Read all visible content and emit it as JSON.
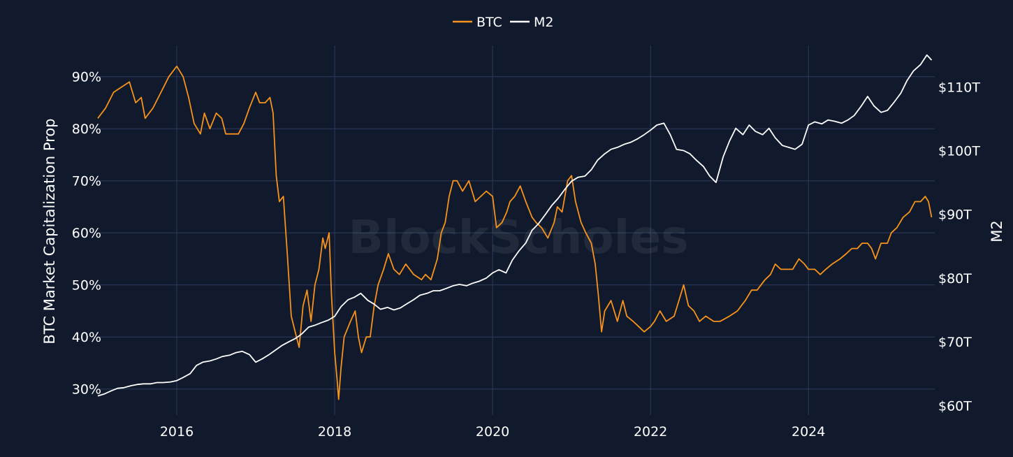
{
  "chart_data": {
    "type": "line",
    "legend": {
      "placement": "top-center"
    },
    "watermark": "BlockScholes",
    "grid": true,
    "x_axis": {
      "ticks": [
        2016,
        2018,
        2020,
        2022,
        2024
      ],
      "tick_labels": [
        "2016",
        "2018",
        "2020",
        "2022",
        "2024"
      ],
      "range": [
        2015.0,
        2025.6
      ]
    },
    "y_left": {
      "label": "BTC Market Capitalization Prop",
      "ticks": [
        30,
        40,
        50,
        60,
        70,
        80,
        90
      ],
      "tick_labels": [
        "30%",
        "40%",
        "50%",
        "60%",
        "70%",
        "80%",
        "90%"
      ],
      "range": [
        25,
        96
      ]
    },
    "y_right": {
      "label": "M2",
      "ticks": [
        60,
        70,
        80,
        90,
        100,
        110
      ],
      "tick_labels": [
        "$60T",
        "$70T",
        "$80T",
        "$90T",
        "$100T",
        "$110T"
      ],
      "range": [
        58.5,
        116.5
      ]
    },
    "series": [
      {
        "name": "BTC",
        "axis": "left",
        "color": "#f7931a",
        "points": [
          [
            2015.0,
            82
          ],
          [
            2015.1,
            84
          ],
          [
            2015.2,
            87
          ],
          [
            2015.3,
            88
          ],
          [
            2015.4,
            89
          ],
          [
            2015.48,
            85
          ],
          [
            2015.55,
            86
          ],
          [
            2015.6,
            82
          ],
          [
            2015.7,
            84
          ],
          [
            2015.8,
            87
          ],
          [
            2015.9,
            90
          ],
          [
            2016.0,
            92
          ],
          [
            2016.08,
            90
          ],
          [
            2016.15,
            86
          ],
          [
            2016.22,
            81
          ],
          [
            2016.3,
            79
          ],
          [
            2016.35,
            83
          ],
          [
            2016.42,
            80
          ],
          [
            2016.5,
            83
          ],
          [
            2016.57,
            82
          ],
          [
            2016.62,
            79
          ],
          [
            2016.7,
            79
          ],
          [
            2016.78,
            79
          ],
          [
            2016.85,
            81
          ],
          [
            2016.92,
            84
          ],
          [
            2017.0,
            87
          ],
          [
            2017.05,
            85
          ],
          [
            2017.12,
            85
          ],
          [
            2017.18,
            86
          ],
          [
            2017.22,
            83
          ],
          [
            2017.26,
            71
          ],
          [
            2017.3,
            66
          ],
          [
            2017.35,
            67
          ],
          [
            2017.4,
            56
          ],
          [
            2017.45,
            44
          ],
          [
            2017.5,
            41
          ],
          [
            2017.55,
            38
          ],
          [
            2017.6,
            46
          ],
          [
            2017.65,
            49
          ],
          [
            2017.7,
            43
          ],
          [
            2017.75,
            50
          ],
          [
            2017.8,
            53
          ],
          [
            2017.85,
            59
          ],
          [
            2017.88,
            57
          ],
          [
            2017.93,
            60
          ],
          [
            2017.96,
            48
          ],
          [
            2018.0,
            37
          ],
          [
            2018.03,
            32
          ],
          [
            2018.05,
            28
          ],
          [
            2018.08,
            34
          ],
          [
            2018.12,
            40
          ],
          [
            2018.2,
            43
          ],
          [
            2018.26,
            45
          ],
          [
            2018.3,
            40
          ],
          [
            2018.34,
            37
          ],
          [
            2018.4,
            40
          ],
          [
            2018.45,
            40
          ],
          [
            2018.5,
            46
          ],
          [
            2018.55,
            50
          ],
          [
            2018.62,
            53
          ],
          [
            2018.68,
            56
          ],
          [
            2018.75,
            53
          ],
          [
            2018.82,
            52
          ],
          [
            2018.9,
            54
          ],
          [
            2019.0,
            52
          ],
          [
            2019.1,
            51
          ],
          [
            2019.15,
            52
          ],
          [
            2019.22,
            51
          ],
          [
            2019.3,
            55
          ],
          [
            2019.35,
            60
          ],
          [
            2019.4,
            62
          ],
          [
            2019.45,
            67
          ],
          [
            2019.5,
            70
          ],
          [
            2019.55,
            70
          ],
          [
            2019.62,
            68
          ],
          [
            2019.7,
            70
          ],
          [
            2019.78,
            66
          ],
          [
            2019.85,
            67
          ],
          [
            2019.92,
            68
          ],
          [
            2020.0,
            67
          ],
          [
            2020.05,
            61
          ],
          [
            2020.12,
            62
          ],
          [
            2020.18,
            64
          ],
          [
            2020.22,
            66
          ],
          [
            2020.28,
            67
          ],
          [
            2020.35,
            69
          ],
          [
            2020.42,
            66
          ],
          [
            2020.5,
            63
          ],
          [
            2020.55,
            62
          ],
          [
            2020.62,
            61
          ],
          [
            2020.7,
            59
          ],
          [
            2020.78,
            62
          ],
          [
            2020.82,
            65
          ],
          [
            2020.88,
            64
          ],
          [
            2020.95,
            70
          ],
          [
            2021.0,
            71
          ],
          [
            2021.05,
            66
          ],
          [
            2021.12,
            62
          ],
          [
            2021.18,
            60
          ],
          [
            2021.25,
            58
          ],
          [
            2021.3,
            54
          ],
          [
            2021.34,
            48
          ],
          [
            2021.38,
            41
          ],
          [
            2021.42,
            45
          ],
          [
            2021.5,
            47
          ],
          [
            2021.58,
            43
          ],
          [
            2021.65,
            47
          ],
          [
            2021.7,
            44
          ],
          [
            2021.78,
            43
          ],
          [
            2021.85,
            42
          ],
          [
            2021.92,
            41
          ],
          [
            2022.0,
            42
          ],
          [
            2022.05,
            43
          ],
          [
            2022.12,
            45
          ],
          [
            2022.2,
            43
          ],
          [
            2022.3,
            44
          ],
          [
            2022.38,
            48
          ],
          [
            2022.42,
            50
          ],
          [
            2022.48,
            46
          ],
          [
            2022.55,
            45
          ],
          [
            2022.62,
            43
          ],
          [
            2022.7,
            44
          ],
          [
            2022.8,
            43
          ],
          [
            2022.88,
            43
          ],
          [
            2023.0,
            44
          ],
          [
            2023.1,
            45
          ],
          [
            2023.2,
            47
          ],
          [
            2023.28,
            49
          ],
          [
            2023.35,
            49
          ],
          [
            2023.45,
            51
          ],
          [
            2023.52,
            52
          ],
          [
            2023.58,
            54
          ],
          [
            2023.65,
            53
          ],
          [
            2023.72,
            53
          ],
          [
            2023.8,
            53
          ],
          [
            2023.88,
            55
          ],
          [
            2023.95,
            54
          ],
          [
            2024.0,
            53
          ],
          [
            2024.08,
            53
          ],
          [
            2024.15,
            52
          ],
          [
            2024.22,
            53
          ],
          [
            2024.3,
            54
          ],
          [
            2024.4,
            55
          ],
          [
            2024.48,
            56
          ],
          [
            2024.55,
            57
          ],
          [
            2024.62,
            57
          ],
          [
            2024.68,
            58
          ],
          [
            2024.75,
            58
          ],
          [
            2024.8,
            57
          ],
          [
            2024.85,
            55
          ],
          [
            2024.92,
            58
          ],
          [
            2025.0,
            58
          ],
          [
            2025.05,
            60
          ],
          [
            2025.12,
            61
          ],
          [
            2025.2,
            63
          ],
          [
            2025.28,
            64
          ],
          [
            2025.35,
            66
          ],
          [
            2025.42,
            66
          ],
          [
            2025.48,
            67
          ],
          [
            2025.52,
            66
          ],
          [
            2025.56,
            63
          ]
        ]
      },
      {
        "name": "M2",
        "axis": "right",
        "color": "#ffffff",
        "points": [
          [
            2015.0,
            61.5
          ],
          [
            2015.08,
            61.8
          ],
          [
            2015.17,
            62.3
          ],
          [
            2015.25,
            62.7
          ],
          [
            2015.33,
            62.8
          ],
          [
            2015.42,
            63.1
          ],
          [
            2015.5,
            63.3
          ],
          [
            2015.58,
            63.4
          ],
          [
            2015.67,
            63.4
          ],
          [
            2015.75,
            63.6
          ],
          [
            2015.83,
            63.6
          ],
          [
            2015.92,
            63.7
          ],
          [
            2016.0,
            63.9
          ],
          [
            2016.08,
            64.4
          ],
          [
            2016.17,
            65.0
          ],
          [
            2016.25,
            66.3
          ],
          [
            2016.33,
            66.8
          ],
          [
            2016.42,
            67.0
          ],
          [
            2016.5,
            67.3
          ],
          [
            2016.58,
            67.7
          ],
          [
            2016.67,
            67.9
          ],
          [
            2016.75,
            68.3
          ],
          [
            2016.83,
            68.5
          ],
          [
            2016.92,
            68.0
          ],
          [
            2017.0,
            66.8
          ],
          [
            2017.08,
            67.3
          ],
          [
            2017.17,
            68.0
          ],
          [
            2017.25,
            68.7
          ],
          [
            2017.33,
            69.4
          ],
          [
            2017.42,
            70.0
          ],
          [
            2017.5,
            70.5
          ],
          [
            2017.58,
            71.2
          ],
          [
            2017.67,
            72.3
          ],
          [
            2017.75,
            72.6
          ],
          [
            2017.83,
            73.0
          ],
          [
            2017.92,
            73.4
          ],
          [
            2018.0,
            74.0
          ],
          [
            2018.08,
            75.5
          ],
          [
            2018.17,
            76.6
          ],
          [
            2018.25,
            77.0
          ],
          [
            2018.33,
            77.6
          ],
          [
            2018.42,
            76.5
          ],
          [
            2018.5,
            75.9
          ],
          [
            2018.58,
            75.1
          ],
          [
            2018.67,
            75.4
          ],
          [
            2018.75,
            75.0
          ],
          [
            2018.83,
            75.3
          ],
          [
            2018.92,
            76.0
          ],
          [
            2019.0,
            76.6
          ],
          [
            2019.08,
            77.3
          ],
          [
            2019.17,
            77.6
          ],
          [
            2019.25,
            78.0
          ],
          [
            2019.33,
            78.0
          ],
          [
            2019.42,
            78.4
          ],
          [
            2019.5,
            78.8
          ],
          [
            2019.58,
            79.0
          ],
          [
            2019.67,
            78.8
          ],
          [
            2019.75,
            79.2
          ],
          [
            2019.83,
            79.5
          ],
          [
            2019.92,
            80.0
          ],
          [
            2020.0,
            80.8
          ],
          [
            2020.08,
            81.3
          ],
          [
            2020.17,
            80.8
          ],
          [
            2020.25,
            82.8
          ],
          [
            2020.33,
            84.2
          ],
          [
            2020.42,
            85.5
          ],
          [
            2020.5,
            87.5
          ],
          [
            2020.58,
            88.5
          ],
          [
            2020.67,
            90.0
          ],
          [
            2020.75,
            91.4
          ],
          [
            2020.83,
            92.5
          ],
          [
            2020.92,
            94.0
          ],
          [
            2021.0,
            95.2
          ],
          [
            2021.08,
            95.8
          ],
          [
            2021.17,
            96.0
          ],
          [
            2021.25,
            97.0
          ],
          [
            2021.33,
            98.5
          ],
          [
            2021.42,
            99.5
          ],
          [
            2021.5,
            100.2
          ],
          [
            2021.58,
            100.5
          ],
          [
            2021.67,
            101.0
          ],
          [
            2021.75,
            101.3
          ],
          [
            2021.83,
            101.8
          ],
          [
            2021.92,
            102.5
          ],
          [
            2022.0,
            103.2
          ],
          [
            2022.08,
            104.0
          ],
          [
            2022.17,
            104.3
          ],
          [
            2022.25,
            102.5
          ],
          [
            2022.33,
            100.2
          ],
          [
            2022.42,
            100.0
          ],
          [
            2022.5,
            99.5
          ],
          [
            2022.58,
            98.5
          ],
          [
            2022.67,
            97.5
          ],
          [
            2022.75,
            96.0
          ],
          [
            2022.83,
            95.0
          ],
          [
            2022.92,
            99.0
          ],
          [
            2023.0,
            101.5
          ],
          [
            2023.08,
            103.5
          ],
          [
            2023.17,
            102.5
          ],
          [
            2023.25,
            104.0
          ],
          [
            2023.33,
            103.0
          ],
          [
            2023.42,
            102.5
          ],
          [
            2023.5,
            103.5
          ],
          [
            2023.58,
            102.0
          ],
          [
            2023.67,
            100.8
          ],
          [
            2023.75,
            100.5
          ],
          [
            2023.83,
            100.2
          ],
          [
            2023.92,
            101.0
          ],
          [
            2024.0,
            104.0
          ],
          [
            2024.08,
            104.5
          ],
          [
            2024.17,
            104.2
          ],
          [
            2024.25,
            104.8
          ],
          [
            2024.33,
            104.6
          ],
          [
            2024.42,
            104.3
          ],
          [
            2024.5,
            104.8
          ],
          [
            2024.58,
            105.5
          ],
          [
            2024.67,
            107.0
          ],
          [
            2024.75,
            108.5
          ],
          [
            2024.83,
            107.0
          ],
          [
            2024.92,
            106.0
          ],
          [
            2025.0,
            106.3
          ],
          [
            2025.08,
            107.5
          ],
          [
            2025.17,
            109.0
          ],
          [
            2025.25,
            111.0
          ],
          [
            2025.33,
            112.5
          ],
          [
            2025.42,
            113.5
          ],
          [
            2025.5,
            115.0
          ],
          [
            2025.56,
            114.2
          ]
        ]
      }
    ]
  }
}
